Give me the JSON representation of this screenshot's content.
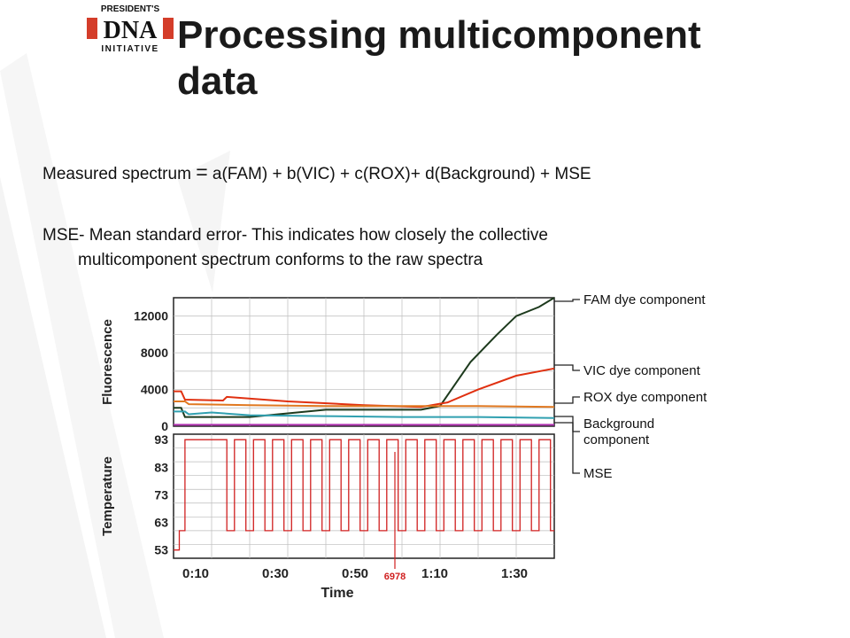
{
  "logo": {
    "line1": "PRESIDENT'S",
    "line2": "DNA",
    "line3": "INITIATIVE"
  },
  "slide": {
    "title_line1": "Processing multicomponent",
    "title_line2": "data",
    "equation_lhs": "Measured spectrum ",
    "equation_eq": "=",
    "equation_rhs": " a(FAM) + b(VIC) + c(ROX)+ d(Background) + MSE",
    "mse_line1": "MSE- Mean standard error- This indicates how closely the collective",
    "mse_line2": "multicomponent spectrum conforms to the raw spectra"
  },
  "chart_data": [
    {
      "type": "line",
      "ylabel": "Fluorescence",
      "yticks": [
        "12000",
        "8000",
        "4000",
        "0"
      ],
      "ylim": [
        0,
        14000
      ],
      "xlim": [
        0,
        100
      ],
      "grid": true,
      "legend": "right",
      "series": [
        {
          "name": "FAM dye component",
          "color": "#1d3a1d",
          "x": [
            0,
            2,
            3,
            20,
            40,
            55,
            65,
            70,
            73,
            78,
            85,
            90,
            96,
            100
          ],
          "y": [
            2000,
            2000,
            1000,
            1000,
            1800,
            1800,
            1800,
            2200,
            4000,
            7000,
            10000,
            12000,
            13000,
            14000
          ]
        },
        {
          "name": "VIC dye component",
          "color": "#e03010",
          "x": [
            0,
            2,
            3,
            13,
            14,
            30,
            50,
            65,
            72,
            80,
            90,
            100
          ],
          "y": [
            3800,
            3800,
            2900,
            2800,
            3200,
            2700,
            2300,
            2100,
            2600,
            4000,
            5500,
            6300
          ]
        },
        {
          "name": "ROX dye component",
          "color": "#e07820",
          "x": [
            0,
            3,
            4,
            20,
            40,
            60,
            80,
            100
          ],
          "y": [
            2700,
            2700,
            2400,
            2300,
            2200,
            2200,
            2200,
            2100
          ]
        },
        {
          "name": "Background component",
          "color": "#30a0b0",
          "x": [
            0,
            3,
            4,
            10,
            20,
            40,
            60,
            80,
            100
          ],
          "y": [
            1600,
            1600,
            1300,
            1500,
            1200,
            1100,
            1000,
            1000,
            900
          ]
        },
        {
          "name": "MSE",
          "color": "#b030b0",
          "x": [
            0,
            100
          ],
          "y": [
            150,
            150
          ]
        }
      ]
    },
    {
      "type": "line",
      "ylabel": "Temperature",
      "xlabel": "Time",
      "yticks": [
        "93",
        "83",
        "73",
        "63",
        "53"
      ],
      "ylim": [
        50,
        95
      ],
      "xticks": [
        "0:10",
        "0:30",
        "0:50",
        "1:10",
        "1:30"
      ],
      "xlim": [
        0,
        100
      ],
      "grid": true,
      "marker_label": "6978",
      "series": [
        {
          "name": "",
          "color": "#d02020",
          "x": [
            0,
            1.5,
            1.5,
            3,
            3,
            14,
            14,
            16,
            16,
            19,
            19,
            21,
            21,
            24,
            24,
            26,
            26,
            29,
            29,
            31,
            31,
            34,
            34,
            36,
            36,
            39,
            39,
            41,
            41,
            44,
            44,
            46,
            46,
            49,
            49,
            51,
            51,
            54,
            54,
            56,
            56,
            59,
            59,
            61,
            61,
            64,
            64,
            66,
            66,
            69,
            69,
            71,
            71,
            74,
            74,
            76,
            76,
            79,
            79,
            81,
            81,
            84,
            84,
            86,
            86,
            89,
            89,
            91,
            91,
            94,
            94,
            96,
            96,
            99,
            99,
            100
          ],
          "y": [
            53,
            53,
            60,
            60,
            93,
            93,
            60,
            60,
            93,
            93,
            60,
            60,
            93,
            93,
            60,
            60,
            93,
            93,
            60,
            60,
            93,
            93,
            60,
            60,
            93,
            93,
            60,
            60,
            93,
            93,
            60,
            60,
            93,
            93,
            60,
            60,
            93,
            93,
            60,
            60,
            93,
            93,
            60,
            60,
            93,
            93,
            60,
            60,
            93,
            93,
            60,
            60,
            93,
            93,
            60,
            60,
            93,
            93,
            60,
            60,
            93,
            93,
            60,
            60,
            93,
            93,
            60,
            60,
            93,
            93,
            60,
            60,
            93,
            93,
            60,
            60
          ]
        }
      ]
    }
  ]
}
